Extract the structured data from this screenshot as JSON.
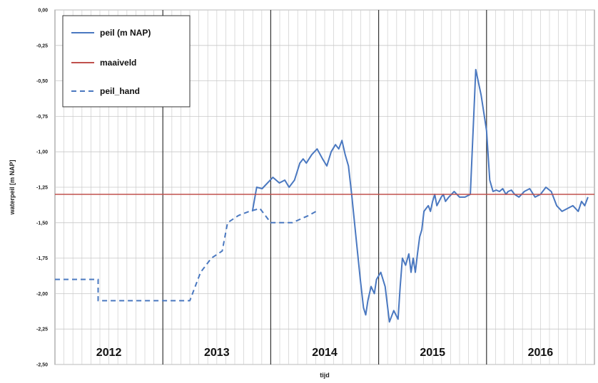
{
  "chart_data": {
    "type": "line",
    "xlabel": "tijd",
    "ylabel": "waterpeil [m NAP]",
    "ylim": [
      -2.5,
      0.0
    ],
    "y_ticks": [
      "0,00",
      "-0,25",
      "-0,50",
      "-0,75",
      "-1,00",
      "-1,25",
      "-1,50",
      "-1,75",
      "-2,00",
      "-2,25",
      "-2,50"
    ],
    "x_range": [
      2012.0,
      2017.0
    ],
    "x_categories": [
      "2012",
      "2013",
      "2014",
      "2015",
      "2016"
    ],
    "grid": true,
    "legend_position": "top-left",
    "series": [
      {
        "name": "peil (m NAP)",
        "style": "solid",
        "color": "#4a78c0",
        "x": [
          2013.83,
          2013.87,
          2013.92,
          2013.97,
          2014.02,
          2014.08,
          2014.13,
          2014.17,
          2014.22,
          2014.27,
          2014.3,
          2014.33,
          2014.38,
          2014.43,
          2014.48,
          2014.52,
          2014.56,
          2014.6,
          2014.63,
          2014.66,
          2014.69,
          2014.72,
          2014.75,
          2014.79,
          2014.83,
          2014.86,
          2014.88,
          2014.9,
          2014.93,
          2014.96,
          2014.98,
          2015.02,
          2015.06,
          2015.1,
          2015.14,
          2015.18,
          2015.2,
          2015.22,
          2015.25,
          2015.28,
          2015.3,
          2015.32,
          2015.34,
          2015.36,
          2015.38,
          2015.4,
          2015.42,
          2015.44,
          2015.46,
          2015.48,
          2015.5,
          2015.52,
          2015.54,
          2015.56,
          2015.58,
          2015.6,
          2015.62,
          2015.65,
          2015.7,
          2015.75,
          2015.8,
          2015.85,
          2015.9,
          2015.95,
          2016.0,
          2016.03,
          2016.06,
          2016.09,
          2016.12,
          2016.15,
          2016.18,
          2016.2,
          2016.23,
          2016.26,
          2016.3,
          2016.35,
          2016.4,
          2016.45,
          2016.5,
          2016.55,
          2016.6,
          2016.65,
          2016.7,
          2016.75,
          2016.8,
          2016.85,
          2016.88,
          2016.91,
          2016.94
        ],
        "y": [
          -1.42,
          -1.25,
          -1.26,
          -1.22,
          -1.18,
          -1.22,
          -1.2,
          -1.25,
          -1.2,
          -1.08,
          -1.05,
          -1.08,
          -1.02,
          -0.98,
          -1.05,
          -1.1,
          -1.0,
          -0.95,
          -0.98,
          -0.92,
          -1.02,
          -1.1,
          -1.3,
          -1.6,
          -1.9,
          -2.1,
          -2.15,
          -2.05,
          -1.95,
          -2.0,
          -1.9,
          -1.85,
          -1.95,
          -2.2,
          -2.12,
          -2.18,
          -1.95,
          -1.75,
          -1.8,
          -1.72,
          -1.85,
          -1.75,
          -1.85,
          -1.72,
          -1.6,
          -1.55,
          -1.42,
          -1.4,
          -1.38,
          -1.42,
          -1.35,
          -1.3,
          -1.38,
          -1.35,
          -1.32,
          -1.3,
          -1.35,
          -1.32,
          -1.28,
          -1.32,
          -1.32,
          -1.3,
          -0.42,
          -0.6,
          -0.85,
          -1.2,
          -1.28,
          -1.27,
          -1.28,
          -1.26,
          -1.3,
          -1.28,
          -1.27,
          -1.3,
          -1.32,
          -1.28,
          -1.26,
          -1.32,
          -1.3,
          -1.25,
          -1.28,
          -1.38,
          -1.42,
          -1.4,
          -1.38,
          -1.42,
          -1.35,
          -1.38,
          -1.32
        ]
      },
      {
        "name": "maaiveld",
        "style": "solid",
        "color": "#c0504d",
        "x": [
          2012.0,
          2017.0
        ],
        "y": [
          -1.3,
          -1.3
        ]
      },
      {
        "name": "peil_hand",
        "style": "dashed",
        "color": "#4a78c0",
        "x": [
          2012.0,
          2012.4,
          2012.4,
          2013.25,
          2013.35,
          2013.45,
          2013.55,
          2013.6,
          2013.7,
          2013.8,
          2013.9,
          2014.0,
          2014.1,
          2014.2,
          2014.35,
          2014.42
        ],
        "y": [
          -1.9,
          -1.9,
          -2.05,
          -2.05,
          -1.85,
          -1.75,
          -1.7,
          -1.5,
          -1.45,
          -1.42,
          -1.4,
          -1.5,
          -1.5,
          -1.5,
          -1.45,
          -1.42
        ]
      }
    ]
  }
}
